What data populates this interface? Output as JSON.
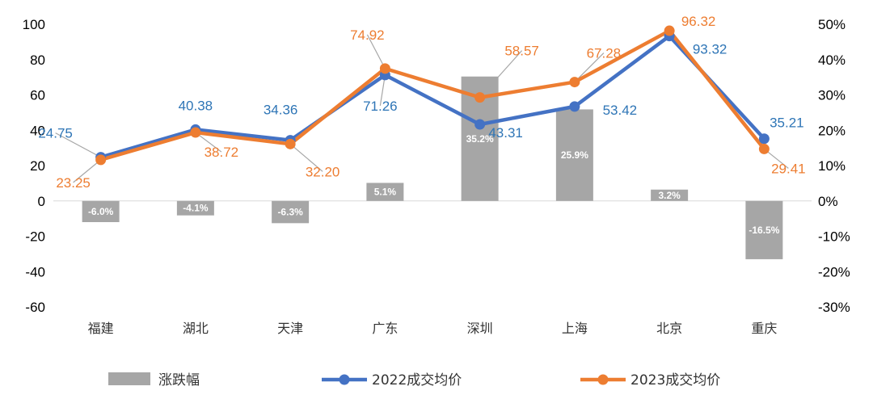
{
  "chart_data": {
    "type": "bar+line",
    "categories": [
      "福建",
      "湖北",
      "天津",
      "广东",
      "深圳",
      "上海",
      "北京",
      "重庆"
    ],
    "bars": {
      "name": "涨跌幅",
      "values": [
        -6.0,
        -4.1,
        -6.3,
        5.1,
        35.2,
        25.9,
        3.2,
        -16.5
      ],
      "labels": [
        "-6.0%",
        "-4.1%",
        "-6.3%",
        "5.1%",
        "35.2%",
        "25.9%",
        "3.2%",
        "-16.5%"
      ],
      "color": "#a6a6a6",
      "axis": "right"
    },
    "series": [
      {
        "name": "2022成交均价",
        "values": [
          24.75,
          40.38,
          34.36,
          71.26,
          43.31,
          53.42,
          93.32,
          35.21
        ],
        "labels": [
          "24.75",
          "40.38",
          "34.36",
          "71.26",
          "43.31",
          "53.42",
          "93.32",
          "35.21"
        ],
        "color": "#4472c4",
        "label_color": "#2e75b6",
        "axis": "left"
      },
      {
        "name": "2023成交均价",
        "values": [
          23.25,
          38.72,
          32.2,
          74.92,
          58.57,
          67.28,
          96.32,
          29.41
        ],
        "labels": [
          "23.25",
          "38.72",
          "32.20",
          "74.92",
          "58.57",
          "67.28",
          "96.32",
          "29.41"
        ],
        "color": "#ed7d31",
        "label_color": "#ed7d31",
        "axis": "left"
      }
    ],
    "left_axis": {
      "ylim": [
        -60,
        100
      ],
      "ticks": [
        "100",
        "80",
        "60",
        "40",
        "20",
        "0",
        "-20",
        "-40",
        "-60"
      ]
    },
    "right_axis": {
      "ylim": [
        -30,
        50
      ],
      "ticks": [
        "50%",
        "40%",
        "30%",
        "20%",
        "10%",
        "0%",
        "-10%",
        "-20%",
        "-30%"
      ]
    },
    "grid": false,
    "legend_position": "bottom"
  }
}
